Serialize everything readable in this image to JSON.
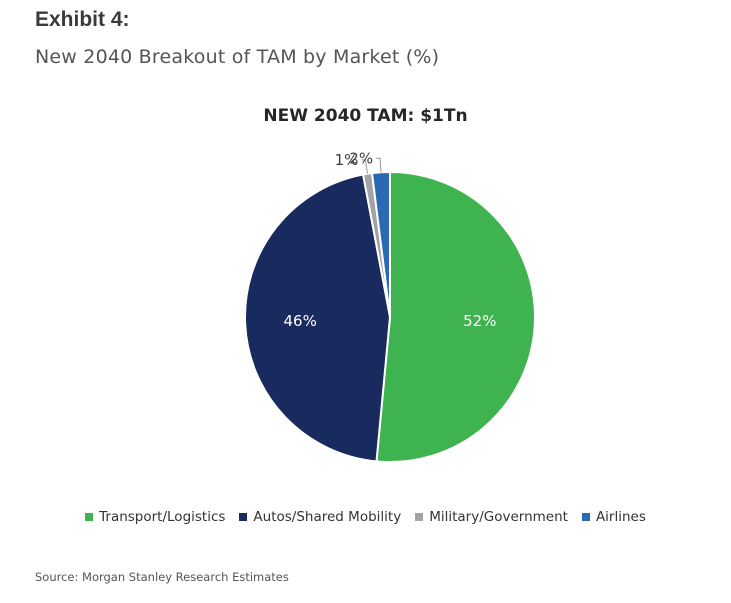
{
  "header": {
    "exhibit": "Exhibit 4:",
    "subtitle": "New 2040 Breakout of TAM by Market (%)"
  },
  "footer": {
    "source": "Source: Morgan Stanley Research Estimates"
  },
  "chart_data": {
    "type": "pie",
    "title": "NEW 2040 TAM: $1Tn",
    "legend_position": "bottom",
    "slices": [
      {
        "name": "Transport/Logistics",
        "value": 52,
        "label": "52%",
        "color": "#3fb34f"
      },
      {
        "name": "Autos/Shared Mobility",
        "value": 46,
        "label": "46%",
        "color": "#192a5e"
      },
      {
        "name": "Military/Government",
        "value": 1,
        "label": "1%",
        "color": "#a0a4a6"
      },
      {
        "name": "Airlines",
        "value": 2,
        "label": "2%",
        "color": "#2b6ab3"
      }
    ]
  }
}
